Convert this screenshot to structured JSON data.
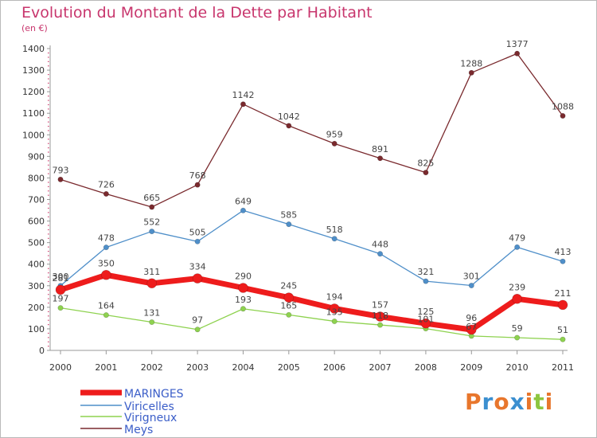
{
  "title": "Evolution du Montant de la Dette par Habitant",
  "unit": "(en €)",
  "logo": {
    "text": "Proxiti",
    "letter_colors": [
      "#e8762c",
      "#3b8fd0",
      "#e8762c",
      "#3b8fd0",
      "#e8762c",
      "#8dc63f",
      "#e8762c"
    ]
  },
  "chart_data": {
    "type": "line",
    "x": [
      2000,
      2001,
      2002,
      2003,
      2004,
      2005,
      2006,
      2007,
      2008,
      2009,
      2010,
      2011
    ],
    "yticks": [
      0,
      100,
      200,
      300,
      400,
      500,
      600,
      700,
      800,
      900,
      1000,
      1100,
      1200,
      1300,
      1400
    ],
    "ylim": [
      0,
      1400
    ],
    "grid": false,
    "legend_position": "bottom-left",
    "series": [
      {
        "name": "Meys",
        "color": "#7a2a2e",
        "values": [
          793,
          726,
          665,
          768,
          1142,
          1042,
          959,
          891,
          825,
          1288,
          1377,
          1088
        ]
      },
      {
        "name": "Viricelles",
        "color": "#4f8fc9",
        "values": [
          300,
          478,
          552,
          505,
          649,
          585,
          518,
          448,
          321,
          301,
          479,
          413
        ]
      },
      {
        "name": "Virigneux",
        "color": "#8ed24f",
        "values": [
          197,
          164,
          131,
          97,
          193,
          165,
          135,
          118,
          101,
          67,
          59,
          51
        ]
      },
      {
        "name": "MARINGES",
        "color": "#ee1c1c",
        "values": [
          281,
          350,
          311,
          334,
          290,
          245,
          194,
          157,
          125,
          96,
          239,
          211
        ]
      }
    ],
    "labels": [
      {
        "series": "Meys",
        "text": [
          "793",
          "726",
          "665",
          "768",
          "1142",
          "1042",
          "959",
          "891",
          "825",
          "1288",
          "1377",
          "1088"
        ]
      },
      {
        "series": "Viricelles",
        "text": [
          "300",
          "478",
          "552",
          "505",
          "649",
          "585",
          "518",
          "448",
          "321",
          "301",
          "479",
          "413"
        ]
      },
      {
        "series": "Virigneux",
        "text": [
          "197",
          "164",
          "131",
          "97",
          "193",
          "165",
          "135",
          "118",
          "101",
          "67",
          "59",
          "51"
        ]
      },
      {
        "series": "MARINGES",
        "text": [
          "281",
          "350",
          "311",
          "334",
          "290",
          "245",
          "194",
          "157",
          "125",
          "96",
          "239",
          "211"
        ]
      }
    ],
    "legend": [
      {
        "name": "MARINGES",
        "color": "#ee1c1c"
      },
      {
        "name": "Viricelles",
        "color": "#4f8fc9"
      },
      {
        "name": "Virigneux",
        "color": "#8ed24f"
      },
      {
        "name": "Meys",
        "color": "#7a2a2e"
      }
    ]
  }
}
